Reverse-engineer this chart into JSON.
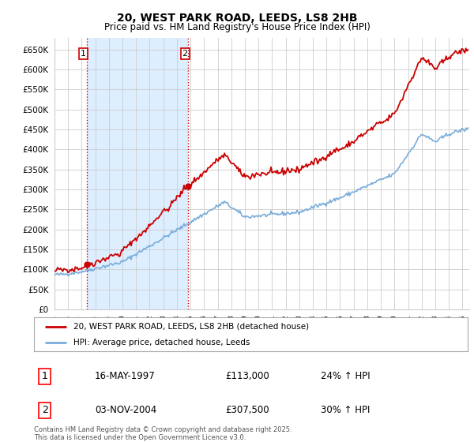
{
  "title": "20, WEST PARK ROAD, LEEDS, LS8 2HB",
  "subtitle": "Price paid vs. HM Land Registry's House Price Index (HPI)",
  "legend_line1": "20, WEST PARK ROAD, LEEDS, LS8 2HB (detached house)",
  "legend_line2": "HPI: Average price, detached house, Leeds",
  "label1_num": "1",
  "label1_date": "16-MAY-1997",
  "label1_price": "£113,000",
  "label1_hpi": "24% ↑ HPI",
  "label2_num": "2",
  "label2_date": "03-NOV-2004",
  "label2_price": "£307,500",
  "label2_hpi": "30% ↑ HPI",
  "footnote": "Contains HM Land Registry data © Crown copyright and database right 2025.\nThis data is licensed under the Open Government Licence v3.0.",
  "xmin": 1995.0,
  "xmax": 2025.5,
  "ymin": 0,
  "ymax": 680000,
  "yticks": [
    0,
    50000,
    100000,
    150000,
    200000,
    250000,
    300000,
    350000,
    400000,
    450000,
    500000,
    550000,
    600000,
    650000
  ],
  "grid_color": "#cccccc",
  "hpi_color": "#7aaddb",
  "price_color": "#cc0000",
  "vline_color": "#cc0000",
  "shade_color": "#ddeeff",
  "sale1_year": 1997.37,
  "sale1_price": 113000,
  "sale2_year": 2004.84,
  "sale2_price": 307500,
  "background_color": "#ffffff",
  "plot_bg_color": "#ffffff"
}
